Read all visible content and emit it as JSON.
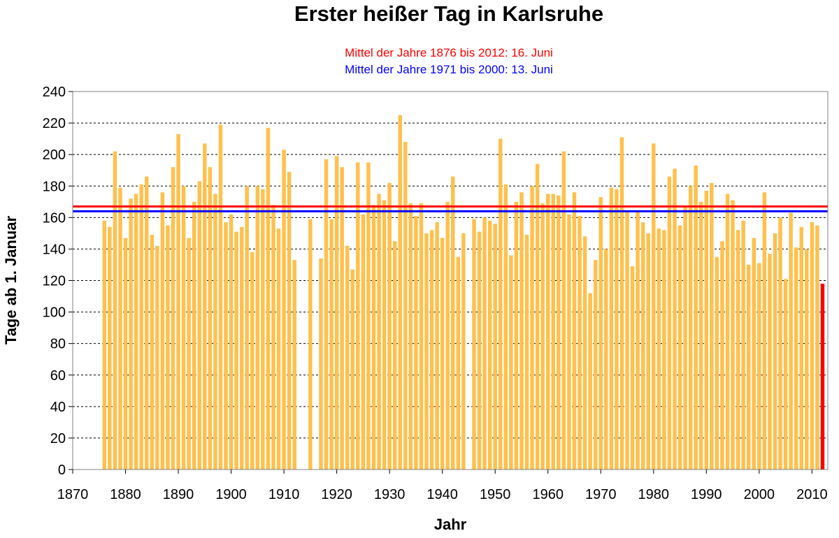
{
  "chart_data": {
    "type": "bar",
    "title": "Erster heißer Tag in Karlsruhe",
    "annotations": [
      {
        "text": "Mittel der Jahre 1876 bis 2012: 16. Juni",
        "color": "#ff0000",
        "value": 167
      },
      {
        "text": "Mittel der Jahre 1971 bis 2000: 13. Juni",
        "color": "#0000ff",
        "value": 164
      }
    ],
    "xlabel": "Jahr",
    "ylabel": "Tage ab 1. Januar",
    "xlim": [
      1870,
      2013
    ],
    "ylim": [
      0,
      240
    ],
    "xticks": [
      1870,
      1880,
      1890,
      1900,
      1910,
      1920,
      1930,
      1940,
      1950,
      1960,
      1970,
      1980,
      1990,
      2000,
      2010
    ],
    "yticks": [
      0,
      20,
      40,
      60,
      80,
      100,
      120,
      140,
      160,
      180,
      200,
      220,
      240
    ],
    "grid": "horizontal dashed",
    "bar_color": "#ffc04c",
    "highlight_color": "#ff0000",
    "highlight_year": 2012,
    "data": [
      [
        1876,
        158
      ],
      [
        1877,
        154
      ],
      [
        1878,
        202
      ],
      [
        1879,
        179
      ],
      [
        1880,
        147
      ],
      [
        1881,
        172
      ],
      [
        1882,
        175
      ],
      [
        1883,
        181
      ],
      [
        1884,
        186
      ],
      [
        1885,
        149
      ],
      [
        1886,
        142
      ],
      [
        1887,
        176
      ],
      [
        1888,
        155
      ],
      [
        1889,
        192
      ],
      [
        1890,
        213
      ],
      [
        1891,
        180
      ],
      [
        1892,
        147
      ],
      [
        1893,
        170
      ],
      [
        1894,
        183
      ],
      [
        1895,
        207
      ],
      [
        1896,
        192
      ],
      [
        1897,
        175
      ],
      [
        1898,
        219
      ],
      [
        1899,
        157
      ],
      [
        1900,
        162
      ],
      [
        1901,
        151
      ],
      [
        1902,
        154
      ],
      [
        1903,
        180
      ],
      [
        1904,
        138
      ],
      [
        1905,
        180
      ],
      [
        1906,
        178
      ],
      [
        1907,
        217
      ],
      [
        1908,
        168
      ],
      [
        1909,
        153
      ],
      [
        1910,
        203
      ],
      [
        1911,
        189
      ],
      [
        1912,
        133
      ],
      [
        1915,
        159
      ],
      [
        1917,
        134
      ],
      [
        1918,
        197
      ],
      [
        1919,
        159
      ],
      [
        1920,
        199
      ],
      [
        1921,
        192
      ],
      [
        1922,
        142
      ],
      [
        1923,
        127
      ],
      [
        1924,
        195
      ],
      [
        1925,
        162
      ],
      [
        1926,
        195
      ],
      [
        1927,
        168
      ],
      [
        1928,
        175
      ],
      [
        1929,
        171
      ],
      [
        1930,
        182
      ],
      [
        1931,
        145
      ],
      [
        1932,
        225
      ],
      [
        1933,
        208
      ],
      [
        1934,
        169
      ],
      [
        1935,
        161
      ],
      [
        1936,
        169
      ],
      [
        1937,
        150
      ],
      [
        1938,
        152
      ],
      [
        1939,
        157
      ],
      [
        1940,
        147
      ],
      [
        1941,
        170
      ],
      [
        1942,
        186
      ],
      [
        1943,
        135
      ],
      [
        1944,
        150
      ],
      [
        1946,
        159
      ],
      [
        1947,
        151
      ],
      [
        1948,
        160
      ],
      [
        1949,
        158
      ],
      [
        1950,
        156
      ],
      [
        1951,
        210
      ],
      [
        1952,
        181
      ],
      [
        1953,
        136
      ],
      [
        1954,
        170
      ],
      [
        1955,
        176
      ],
      [
        1956,
        149
      ],
      [
        1957,
        180
      ],
      [
        1958,
        194
      ],
      [
        1959,
        169
      ],
      [
        1960,
        175
      ],
      [
        1961,
        175
      ],
      [
        1962,
        174
      ],
      [
        1963,
        202
      ],
      [
        1964,
        162
      ],
      [
        1965,
        176
      ],
      [
        1966,
        161
      ],
      [
        1967,
        148
      ],
      [
        1968,
        112
      ],
      [
        1969,
        133
      ],
      [
        1970,
        173
      ],
      [
        1971,
        140
      ],
      [
        1972,
        179
      ],
      [
        1973,
        178
      ],
      [
        1974,
        211
      ],
      [
        1975,
        164
      ],
      [
        1976,
        129
      ],
      [
        1977,
        164
      ],
      [
        1978,
        157
      ],
      [
        1979,
        150
      ],
      [
        1980,
        207
      ],
      [
        1981,
        153
      ],
      [
        1982,
        152
      ],
      [
        1983,
        186
      ],
      [
        1984,
        191
      ],
      [
        1985,
        155
      ],
      [
        1986,
        167
      ],
      [
        1987,
        180
      ],
      [
        1988,
        193
      ],
      [
        1989,
        170
      ],
      [
        1990,
        177
      ],
      [
        1991,
        182
      ],
      [
        1992,
        135
      ],
      [
        1993,
        145
      ],
      [
        1994,
        175
      ],
      [
        1995,
        171
      ],
      [
        1996,
        152
      ],
      [
        1997,
        158
      ],
      [
        1998,
        130
      ],
      [
        1999,
        147
      ],
      [
        2000,
        131
      ],
      [
        2001,
        176
      ],
      [
        2002,
        137
      ],
      [
        2003,
        150
      ],
      [
        2004,
        160
      ],
      [
        2005,
        121
      ],
      [
        2006,
        163
      ],
      [
        2007,
        141
      ],
      [
        2008,
        154
      ],
      [
        2009,
        140
      ],
      [
        2010,
        157
      ],
      [
        2011,
        155
      ],
      [
        2012,
        118
      ]
    ]
  }
}
